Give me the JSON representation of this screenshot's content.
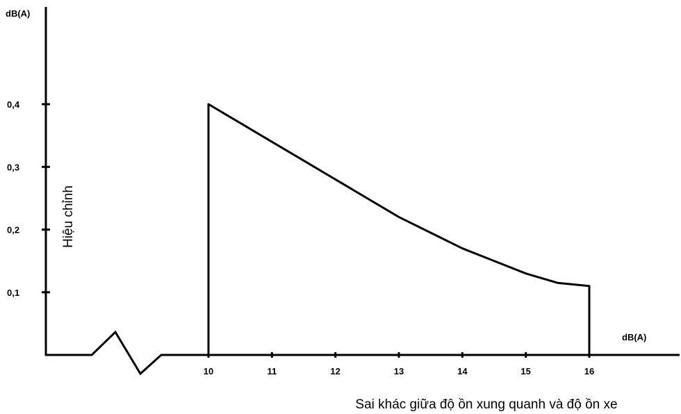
{
  "chart_data": {
    "type": "line",
    "title": "",
    "xlabel": "Sai khác giữa độ ồn xung quanh và độ ồn xe",
    "ylabel": "Hiệu chỉnh",
    "x_unit": "dB(A)",
    "y_unit": "dB(A)",
    "x_tick_labels": [
      "10",
      "11",
      "12",
      "13",
      "14",
      "15",
      "16"
    ],
    "x_tick_values": [
      10,
      11,
      12,
      13,
      14,
      15,
      16
    ],
    "y_tick_labels": [
      "0,1",
      "0,2",
      "0,3",
      "0,4"
    ],
    "y_tick_values": [
      0.1,
      0.2,
      0.3,
      0.4
    ],
    "xlim": [
      10,
      16
    ],
    "ylim": [
      0,
      0.4
    ],
    "axis_break": true,
    "series": [
      {
        "x": [
          10,
          10.5,
          11,
          11.5,
          12,
          12.5,
          13,
          13.5,
          14,
          14.5,
          15,
          15.5,
          16
        ],
        "y": [
          0.4,
          0.37,
          0.34,
          0.31,
          0.28,
          0.25,
          0.22,
          0.195,
          0.17,
          0.15,
          0.13,
          0.115,
          0.11
        ]
      }
    ],
    "drop_lines_at_x": [
      10,
      16
    ]
  }
}
